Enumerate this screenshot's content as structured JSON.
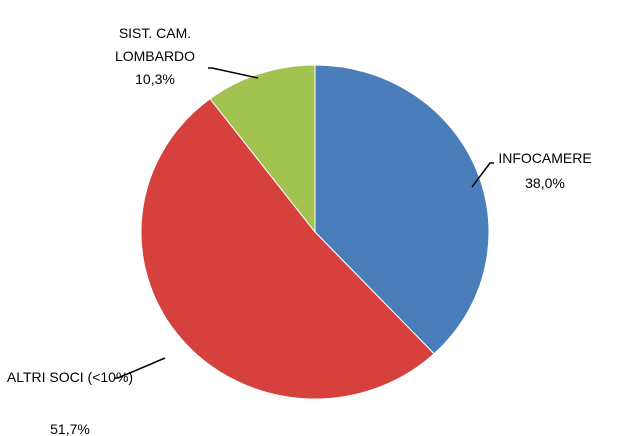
{
  "chart_data": {
    "type": "pie",
    "categories": [
      "INFOCAMERE",
      "ALTRI SOCI (<10%)",
      "SIST. CAM. LOMBARDO"
    ],
    "values": [
      38.0,
      51.7,
      10.3
    ],
    "value_labels": [
      "38,0%",
      "51,7%",
      "10,3%"
    ],
    "colors": [
      "#4a7ebb",
      "#d6403d",
      "#a2c350"
    ]
  }
}
